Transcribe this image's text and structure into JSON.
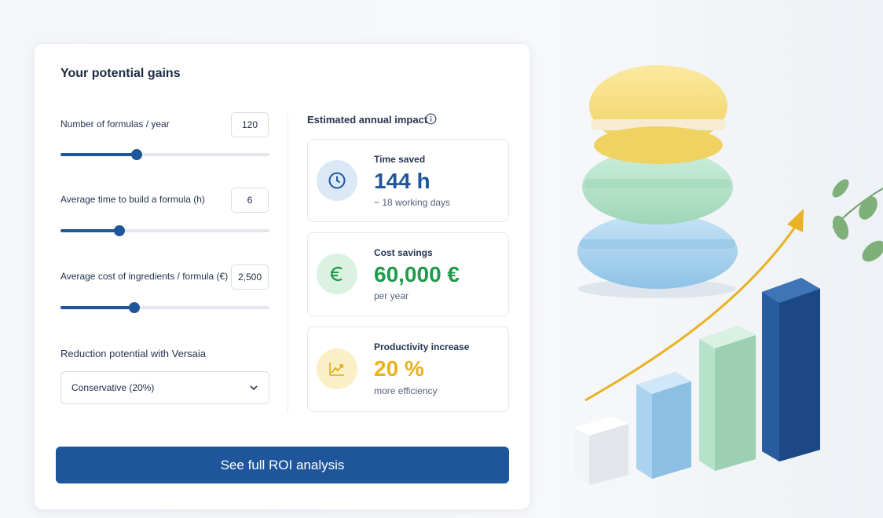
{
  "card": {
    "title": "Your potential gains"
  },
  "inputs": [
    {
      "label": "Number of formulas / year",
      "value": "120"
    },
    {
      "label": "Average time to build a formula (h)",
      "value": "6"
    },
    {
      "label": "Average cost of ingredients / formula (€)",
      "value": "2,500"
    }
  ],
  "reduction": {
    "label": "Reduction potential with Versaia",
    "selected": "Conservative (20%)"
  },
  "impact": {
    "title": "Estimated annual impact",
    "metrics": [
      {
        "label": "Time saved",
        "value": "144 h",
        "note": "~ 18 working days"
      },
      {
        "label": "Cost savings",
        "value": "60,000 €",
        "note": "per year"
      },
      {
        "label": "Productivity increase",
        "value": "20 %",
        "note": "more efficiency"
      }
    ]
  },
  "cta": "See full ROI analysis"
}
